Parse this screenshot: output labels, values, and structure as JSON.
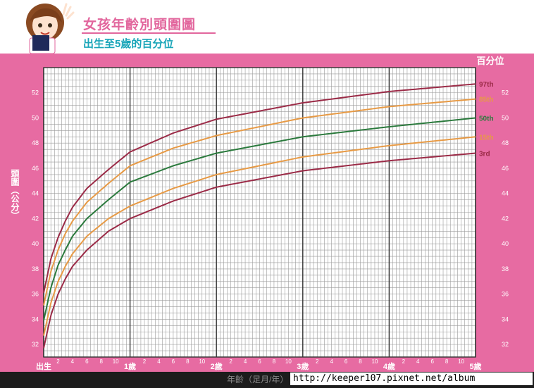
{
  "header": {
    "title": "女孩年齡別頭圍圖",
    "subtitle": "出生至5歲的百分位"
  },
  "percentile_heading": "百分位",
  "footer": {
    "x_caption": "年齡（足月/年）",
    "watermark": "http://keeper107.pixnet.net/album"
  },
  "colors": {
    "frame": "#e76ba2",
    "grid": "#555555",
    "p3": "#9b2b47",
    "p15": "#e79a45",
    "p50": "#2b7a3d",
    "p85": "#e79a45",
    "p97": "#9b2b47"
  },
  "chart_data": {
    "type": "line",
    "title": "女孩年齡別頭圍圖",
    "subtitle": "出生至5歲的百分位",
    "xlabel": "年齡（足月/年）",
    "ylabel": "頭圍（公分）",
    "xlim": [
      0,
      60
    ],
    "ylim": [
      31,
      54
    ],
    "grid": true,
    "x_ticks": [
      {
        "month": 0,
        "label": "出生"
      },
      {
        "month": 2,
        "label": "2"
      },
      {
        "month": 4,
        "label": "4"
      },
      {
        "month": 6,
        "label": "6"
      },
      {
        "month": 8,
        "label": "8"
      },
      {
        "month": 10,
        "label": "10"
      },
      {
        "month": 12,
        "label": "1歲"
      },
      {
        "month": 14,
        "label": "2"
      },
      {
        "month": 16,
        "label": "4"
      },
      {
        "month": 18,
        "label": "6"
      },
      {
        "month": 20,
        "label": "8"
      },
      {
        "month": 22,
        "label": "10"
      },
      {
        "month": 24,
        "label": "2歲"
      },
      {
        "month": 26,
        "label": "2"
      },
      {
        "month": 28,
        "label": "4"
      },
      {
        "month": 30,
        "label": "6"
      },
      {
        "month": 32,
        "label": "8"
      },
      {
        "month": 34,
        "label": "10"
      },
      {
        "month": 36,
        "label": "3歲"
      },
      {
        "month": 38,
        "label": "2"
      },
      {
        "month": 40,
        "label": "4"
      },
      {
        "month": 42,
        "label": "6"
      },
      {
        "month": 44,
        "label": "8"
      },
      {
        "month": 46,
        "label": "10"
      },
      {
        "month": 48,
        "label": "4歲"
      },
      {
        "month": 50,
        "label": "2"
      },
      {
        "month": 52,
        "label": "4"
      },
      {
        "month": 54,
        "label": "6"
      },
      {
        "month": 56,
        "label": "8"
      },
      {
        "month": 58,
        "label": "10"
      },
      {
        "month": 60,
        "label": "5歲"
      }
    ],
    "y_ticks": [
      32,
      34,
      36,
      38,
      40,
      42,
      44,
      46,
      48,
      50,
      52
    ],
    "x": [
      0,
      1,
      2,
      3,
      4,
      6,
      9,
      12,
      18,
      24,
      36,
      48,
      60
    ],
    "series": [
      {
        "name": "3rd",
        "values": [
          31.7,
          34.3,
          36.0,
          37.2,
          38.2,
          39.5,
          41.0,
          42.0,
          43.4,
          44.5,
          45.8,
          46.6,
          47.2
        ]
      },
      {
        "name": "15th",
        "values": [
          32.7,
          35.3,
          37.0,
          38.2,
          39.2,
          40.6,
          42.0,
          43.0,
          44.4,
          45.5,
          46.9,
          47.8,
          48.5
        ]
      },
      {
        "name": "50th",
        "values": [
          33.9,
          36.5,
          38.3,
          39.5,
          40.6,
          42.0,
          43.5,
          44.9,
          46.2,
          47.2,
          48.5,
          49.3,
          50.0
        ]
      },
      {
        "name": "85th",
        "values": [
          35.1,
          37.8,
          39.5,
          40.8,
          41.8,
          43.3,
          44.8,
          46.2,
          47.6,
          48.6,
          50.0,
          50.9,
          51.5
        ]
      },
      {
        "name": "97th",
        "values": [
          36.1,
          38.8,
          40.5,
          41.8,
          42.9,
          44.4,
          45.9,
          47.3,
          48.8,
          49.9,
          51.2,
          52.1,
          52.7
        ]
      }
    ]
  }
}
